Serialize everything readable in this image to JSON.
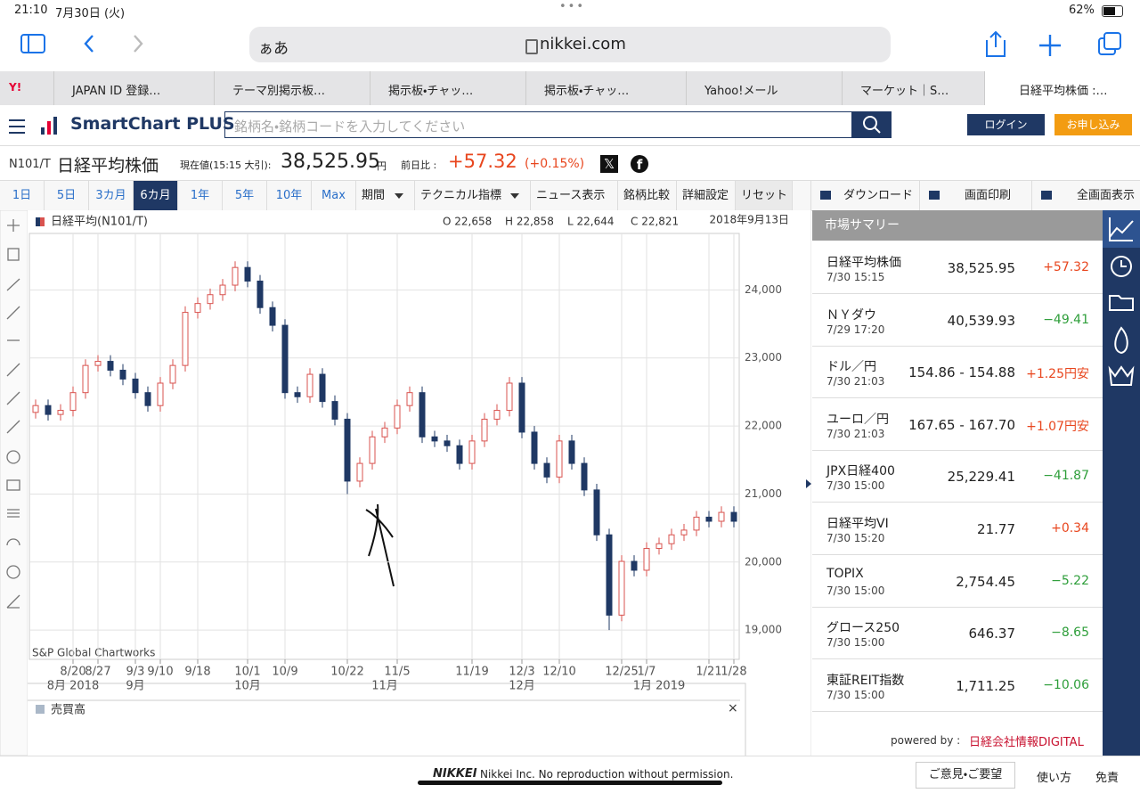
{
  "status_bar": {
    "time": "21:10",
    "date": "7月30日 (火)",
    "battery": "62%"
  },
  "browser": {
    "address_prefix": "ぁあ",
    "url": "nikkei.com",
    "tabs": [
      "JAPAN ID 登録…",
      "テーマ別掲示板…",
      "掲示板・チャッ…",
      "掲示板・チャッ…",
      "Yahoo!メール",
      "マーケット｜S…",
      "日経平均株価 :…"
    ]
  },
  "site": {
    "logo": "SmartChart PLUS",
    "search_placeholder": "銘柄名・銘柄コードを入力してください",
    "login": "ログイン",
    "signup": "お申し込み"
  },
  "quote": {
    "code": "N101/T",
    "name": "日経平均株価",
    "price_label": "現在値(15:15 大引):",
    "price": "38,525.95",
    "price_unit": "円",
    "change_label": "前日比 :",
    "change": "+57.32",
    "change_pct": "(+0.15%)"
  },
  "toolbar": {
    "periods": [
      "1日",
      "5日",
      "3カ月",
      "6カ月",
      "1年",
      "5年",
      "10年",
      "Max"
    ],
    "active_period": 3,
    "menus": [
      "期間",
      "テクニカル指標",
      "ニュース表示",
      "銘柄比較",
      "詳細設定",
      "リセット"
    ],
    "actions": [
      "ダウンロード",
      "画面印刷",
      "全画面表示"
    ]
  },
  "chart_data": {
    "type": "candlestick",
    "grid": true,
    "ohlc_readout": [
      "O 22,658",
      "H 22,858",
      "L 22,644",
      "C 22,821"
    ],
    "date_readout": "2018年9月13日",
    "credit": "S&P Global Chartworks",
    "volume_title": "売買高",
    "categories": [
      null,
      null,
      null,
      "8/20",
      null,
      "8/27",
      null,
      null,
      "9/3",
      null,
      "9/10",
      null,
      null,
      "9/18",
      null,
      null,
      null,
      "10/1",
      null,
      null,
      "10/9",
      null,
      null,
      null,
      null,
      "10/22",
      null,
      null,
      null,
      "11/5",
      null,
      null,
      null,
      null,
      null,
      "11/19",
      null,
      null,
      null,
      "12/3",
      null,
      null,
      "12/10",
      null,
      null,
      null,
      null,
      "12/25",
      null,
      "1/7",
      null,
      null,
      null,
      null,
      "1/21",
      null,
      "1/28"
    ],
    "category_sublabels": [
      null,
      null,
      null,
      "8月 2018",
      null,
      null,
      null,
      null,
      "9月",
      null,
      null,
      null,
      null,
      null,
      null,
      null,
      null,
      "10月",
      null,
      null,
      null,
      null,
      null,
      null,
      null,
      null,
      null,
      null,
      "11月",
      null,
      null,
      null,
      null,
      null,
      null,
      null,
      null,
      null,
      null,
      "12月",
      null,
      null,
      null,
      null,
      null,
      null,
      null,
      null,
      null,
      null,
      "1月 2019",
      null,
      null,
      null,
      null,
      null,
      null
    ],
    "ylim": [
      18570,
      24830
    ],
    "yticks": [
      {
        "value": 19000,
        "label": "19,000"
      },
      {
        "value": 20000,
        "label": "20,000"
      },
      {
        "value": 21000,
        "label": "21,000"
      },
      {
        "value": 22000,
        "label": "22,000"
      },
      {
        "value": 23000,
        "label": "23,000"
      },
      {
        "value": 24000,
        "label": "24,000"
      }
    ],
    "series": [
      {
        "name": "日経平均(N101/T)",
        "up_color": "#d9534f",
        "down_color": "#1f3864",
        "open": [
          22200,
          22300,
          22170,
          22230,
          22490,
          22890,
          22950,
          22820,
          22690,
          22490,
          22300,
          22630,
          22890,
          23670,
          23800,
          23930,
          24070,
          24330,
          24130,
          23740,
          23480,
          22490,
          22430,
          22760,
          22360,
          22100,
          21190,
          21450,
          21840,
          21970,
          22300,
          22490,
          21840,
          21780,
          21710,
          21450,
          21780,
          22100,
          22230,
          22630,
          21910,
          21450,
          21250,
          21780,
          21450,
          21060,
          20400,
          19220,
          20010,
          19880,
          20200,
          20270,
          20400,
          20470,
          20660,
          20600,
          20730
        ],
        "high": [
          22390,
          22390,
          22320,
          22580,
          22980,
          23040,
          23040,
          22910,
          22780,
          22580,
          22720,
          22980,
          23760,
          23890,
          24020,
          24160,
          24420,
          24420,
          24220,
          23830,
          23570,
          22580,
          22850,
          22850,
          22450,
          22190,
          21540,
          21930,
          22060,
          22390,
          22580,
          22580,
          21930,
          21870,
          21800,
          21870,
          22190,
          22320,
          22720,
          22720,
          22000,
          21540,
          21870,
          21870,
          21540,
          21150,
          20490,
          20100,
          20100,
          20290,
          20360,
          20490,
          20560,
          20750,
          20750,
          20820,
          20820
        ],
        "low": [
          22110,
          22080,
          22080,
          22140,
          22400,
          22800,
          22730,
          22600,
          22400,
          22210,
          22210,
          22540,
          22800,
          23580,
          23710,
          23840,
          23980,
          24040,
          23650,
          23390,
          22400,
          22340,
          22340,
          22270,
          22010,
          21000,
          21100,
          21360,
          21750,
          21880,
          22210,
          21750,
          21690,
          21620,
          21360,
          21360,
          21690,
          22010,
          22140,
          21820,
          21360,
          21160,
          21160,
          21360,
          20970,
          20310,
          19000,
          19130,
          19790,
          19790,
          20110,
          20180,
          20310,
          20380,
          20510,
          20510,
          20510
        ],
        "close": [
          22300,
          22170,
          22230,
          22490,
          22890,
          22950,
          22820,
          22690,
          22490,
          22300,
          22630,
          22890,
          23670,
          23800,
          23930,
          24070,
          24330,
          24130,
          23740,
          23480,
          22490,
          22430,
          22760,
          22360,
          22100,
          21190,
          21450,
          21840,
          21970,
          22300,
          22490,
          21840,
          21780,
          21710,
          21450,
          21780,
          22100,
          22230,
          22630,
          21910,
          21450,
          21250,
          21780,
          21450,
          21060,
          20400,
          19220,
          20010,
          19880,
          20200,
          20270,
          20400,
          20470,
          20660,
          20600,
          20730,
          20600
        ]
      }
    ]
  },
  "market_summary": {
    "title": "市場サマリー",
    "rows": [
      {
        "name": "日経平均株価",
        "time": "7/30 15:15",
        "value": "38,525.95",
        "change": "+57.32"
      },
      {
        "name": "ＮＹダウ",
        "time": "7/29 17:20",
        "value": "40,539.93",
        "change": "−49.41"
      },
      {
        "name": "ドル／円",
        "time": "7/30 21:03",
        "value": "154.86 - 154.88",
        "change": "+1.25円安"
      },
      {
        "name": "ユーロ／円",
        "time": "7/30 21:03",
        "value": "167.65 - 167.70",
        "change": "+1.07円安"
      },
      {
        "name": "JPX日経400",
        "time": "7/30 15:00",
        "value": "25,229.41",
        "change": "−41.87"
      },
      {
        "name": "日経平均VI",
        "time": "7/30 15:20",
        "value": "21.77",
        "change": "+0.34"
      },
      {
        "name": "TOPIX",
        "time": "7/30 15:00",
        "value": "2,754.45",
        "change": "−5.22"
      },
      {
        "name": "グロース250",
        "time": "7/30 15:00",
        "value": "646.37",
        "change": "−8.65"
      },
      {
        "name": "東証REIT指数",
        "time": "7/30 15:00",
        "value": "1,711.25",
        "change": "−10.06"
      }
    ],
    "powered_by": "powered by :",
    "provider": "日経会社情報DIGITAL"
  },
  "footer": {
    "brand": "NIKKEI",
    "copyright": "Nikkei Inc. No reproduction without permission.",
    "links": [
      "ご意見・ご要望",
      "使い方",
      "免責"
    ]
  }
}
